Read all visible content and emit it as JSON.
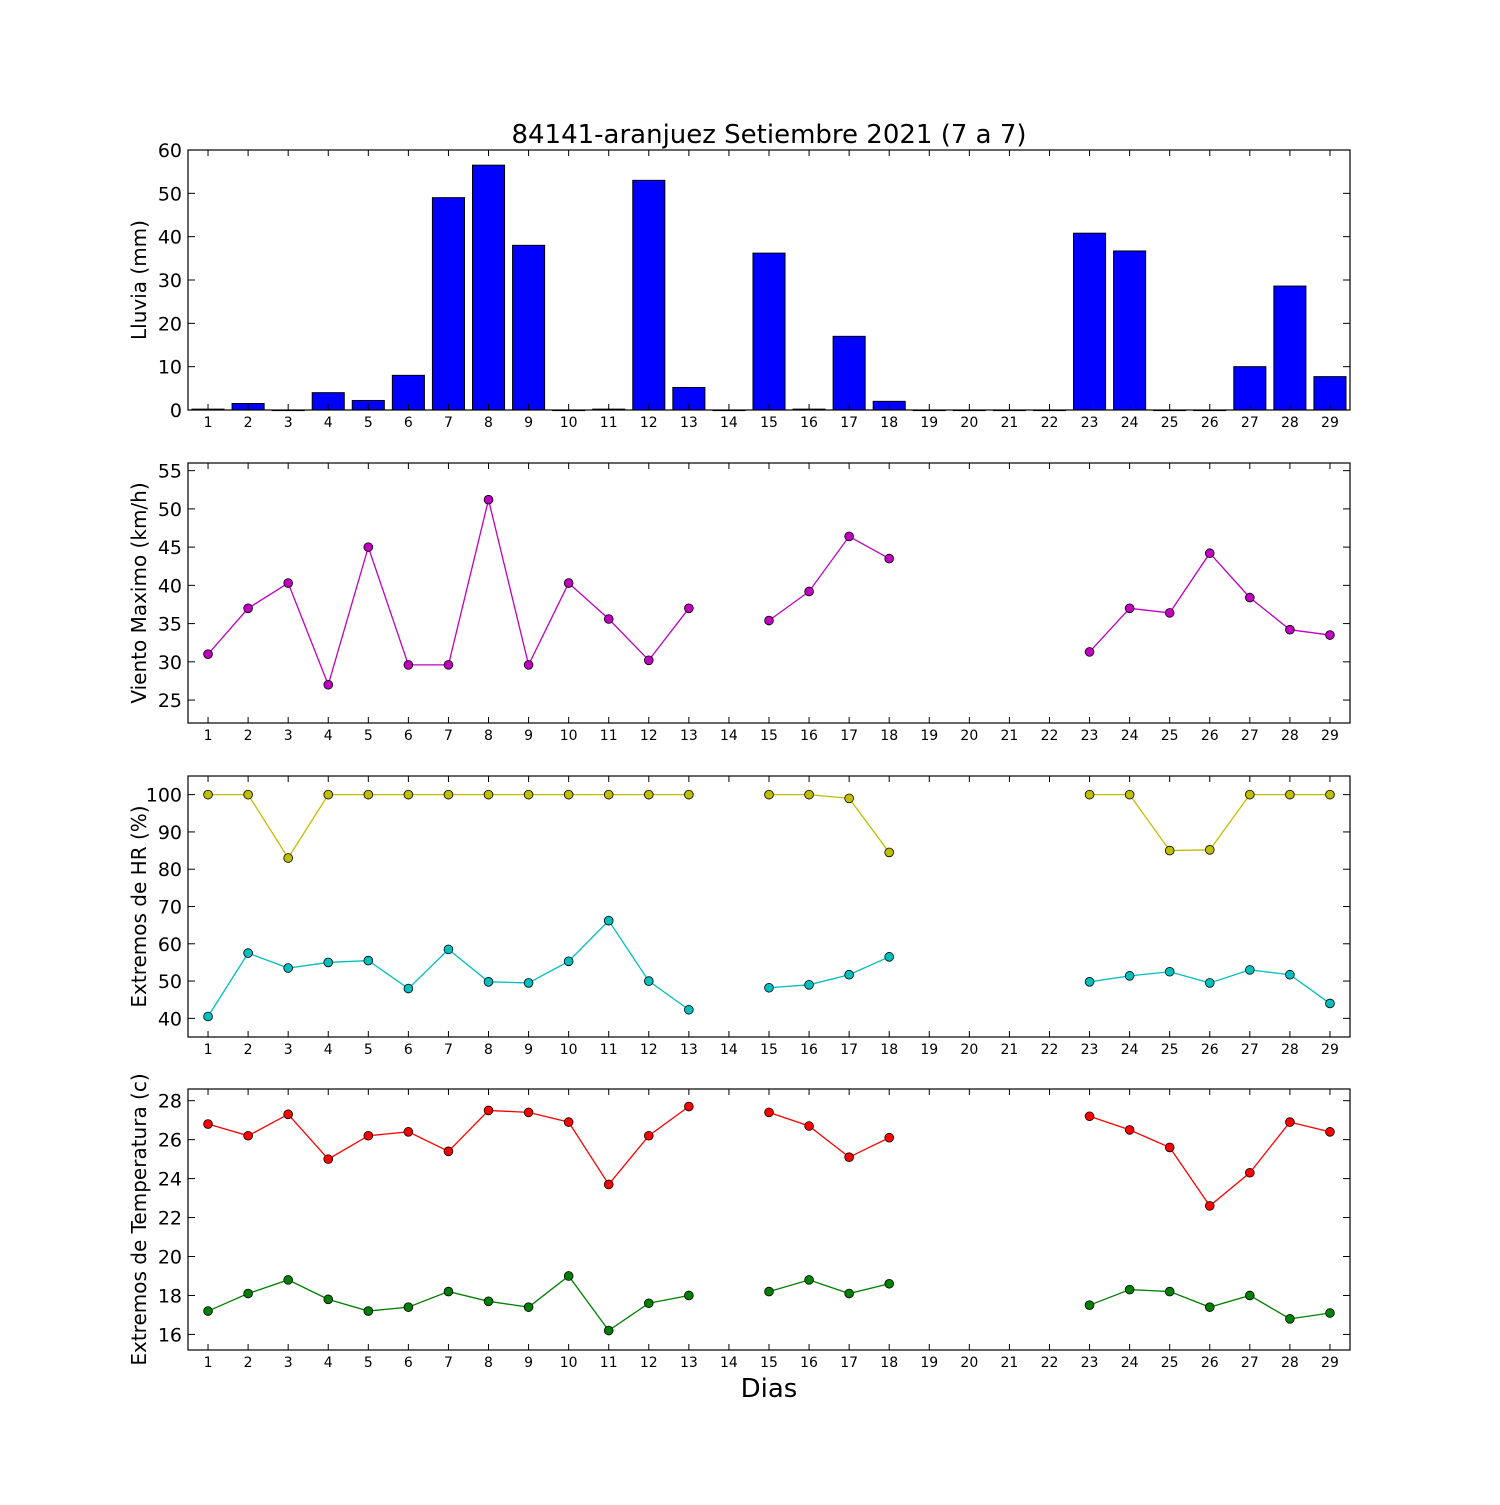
{
  "chart_data": {
    "title": "84141-aranjuez Setiembre 2021  (7 a 7)",
    "xlabel": "Dias",
    "days": [
      1,
      2,
      3,
      4,
      5,
      6,
      7,
      8,
      9,
      10,
      11,
      12,
      13,
      14,
      15,
      16,
      17,
      18,
      19,
      20,
      21,
      22,
      23,
      24,
      25,
      26,
      27,
      28,
      29
    ],
    "xlim": [
      0.5,
      29.5
    ],
    "panels": [
      {
        "id": "lluvia",
        "type": "bar",
        "ylabel": "Lluvia (mm)",
        "ylim": [
          0,
          60
        ],
        "yticks": [
          0,
          10,
          20,
          30,
          40,
          50,
          60
        ],
        "series": [
          {
            "color": "#0000ff",
            "values": [
              0.2,
              1.5,
              0,
              4,
              2.2,
              8,
              49,
              56.5,
              38,
              0,
              0.2,
              53,
              5.2,
              0,
              36.2,
              0.2,
              17,
              2,
              0,
              0,
              0,
              0,
              40.8,
              36.7,
              0,
              0,
              10,
              28.6,
              7.7
            ]
          }
        ]
      },
      {
        "id": "viento",
        "type": "line",
        "ylabel": "Viento Maximo (km/h)",
        "ylim": [
          22,
          56
        ],
        "yticks": [
          25,
          30,
          35,
          40,
          45,
          50,
          55
        ],
        "series": [
          {
            "color": "#bf00bf",
            "values": [
              31,
              37,
              40.3,
              27,
              45,
              29.6,
              29.6,
              51.2,
              29.6,
              40.3,
              35.6,
              30.2,
              37,
              null,
              35.4,
              39.2,
              46.4,
              43.5,
              null,
              null,
              null,
              null,
              31.3,
              37,
              36.4,
              44.2,
              38.4,
              34.2,
              33.5
            ]
          }
        ]
      },
      {
        "id": "hr",
        "type": "line",
        "ylabel": "Extremos de HR (%)",
        "ylim": [
          35,
          105
        ],
        "yticks": [
          40,
          50,
          60,
          70,
          80,
          90,
          100
        ],
        "series": [
          {
            "color": "#bfbf00",
            "values": [
              100,
              100,
              83,
              100,
              100,
              100,
              100,
              100,
              100,
              100,
              100,
              100,
              100,
              null,
              100,
              100,
              99,
              84.5,
              null,
              null,
              null,
              null,
              100,
              100,
              85,
              85.2,
              100,
              100,
              100
            ]
          },
          {
            "color": "#00bfbf",
            "values": [
              40.5,
              57.5,
              53.5,
              55,
              55.5,
              48,
              58.5,
              49.8,
              49.5,
              55.3,
              66.2,
              50,
              42.3,
              null,
              48.2,
              49,
              51.7,
              56.5,
              null,
              null,
              null,
              null,
              49.8,
              51.4,
              52.5,
              49.5,
              53,
              51.7,
              44
            ]
          }
        ]
      },
      {
        "id": "temperatura",
        "type": "line",
        "ylabel": "Extremos de Temperatura (c)",
        "ylim": [
          15.2,
          28.6
        ],
        "yticks": [
          16,
          18,
          20,
          22,
          24,
          26,
          28
        ],
        "series": [
          {
            "color": "#ff0000",
            "values": [
              26.8,
              26.2,
              27.3,
              25,
              26.2,
              26.4,
              25.4,
              27.5,
              27.4,
              26.9,
              23.7,
              26.2,
              27.7,
              null,
              27.4,
              26.7,
              25.1,
              26.1,
              null,
              null,
              null,
              null,
              27.2,
              26.5,
              25.6,
              22.6,
              24.3,
              26.9,
              26.4
            ]
          },
          {
            "color": "#008000",
            "values": [
              17.2,
              18.1,
              18.8,
              17.8,
              17.2,
              17.4,
              18.2,
              17.7,
              17.4,
              19,
              16.2,
              17.6,
              18,
              null,
              18.2,
              18.8,
              18.1,
              18.6,
              null,
              null,
              null,
              null,
              17.5,
              18.3,
              18.2,
              17.4,
              18,
              16.8,
              17.1
            ]
          }
        ]
      }
    ]
  }
}
